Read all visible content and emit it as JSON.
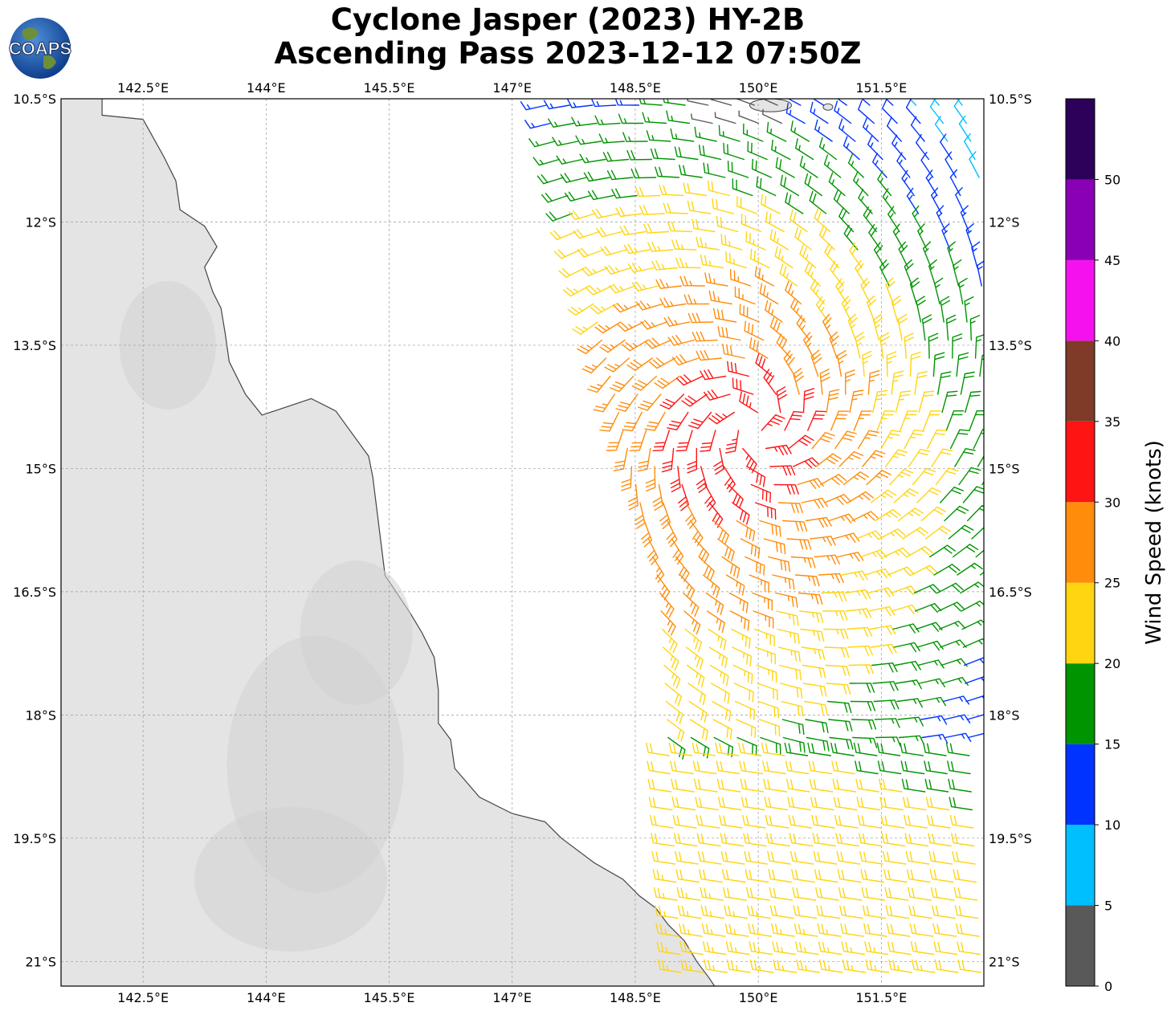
{
  "title": {
    "line1": "Cyclone Jasper (2023) HY-2B",
    "line2": "Ascending Pass 2023-12-12 07:50Z"
  },
  "logo": {
    "text": "COAPS",
    "icon": "globe-logo-icon"
  },
  "map": {
    "lon_range": [
      141.5,
      152.75
    ],
    "lat_range": [
      -21.3,
      -10.5
    ],
    "lon_ticks": [
      {
        "value": 142.5,
        "label": "142.5°E"
      },
      {
        "value": 144.0,
        "label": "144°E"
      },
      {
        "value": 145.5,
        "label": "145.5°E"
      },
      {
        "value": 147.0,
        "label": "147°E"
      },
      {
        "value": 148.5,
        "label": "148.5°E"
      },
      {
        "value": 150.0,
        "label": "150°E"
      },
      {
        "value": 151.5,
        "label": "151.5°E"
      }
    ],
    "lat_ticks": [
      {
        "value": -10.5,
        "label": "10.5°S"
      },
      {
        "value": -12.0,
        "label": "12°S"
      },
      {
        "value": -13.5,
        "label": "13.5°S"
      },
      {
        "value": -15.0,
        "label": "15°S"
      },
      {
        "value": -16.5,
        "label": "16.5°S"
      },
      {
        "value": -18.0,
        "label": "18°S"
      },
      {
        "value": -19.5,
        "label": "19.5°S"
      },
      {
        "value": -21.0,
        "label": "21°S"
      }
    ],
    "grid": true,
    "coastline_color": "#444444",
    "land_color": "#e4e4e4"
  },
  "colorbar": {
    "title": "Wind Speed (knots)",
    "ticks": [
      "0",
      "5",
      "10",
      "15",
      "20",
      "25",
      "30",
      "35",
      "40",
      "45",
      "50"
    ],
    "bins": [
      {
        "from": 0,
        "to": 5,
        "color": "#595959"
      },
      {
        "from": 5,
        "to": 10,
        "color": "#00bfff"
      },
      {
        "from": 10,
        "to": 15,
        "color": "#0033ff"
      },
      {
        "from": 15,
        "to": 20,
        "color": "#009400"
      },
      {
        "from": 20,
        "to": 25,
        "color": "#ffd511"
      },
      {
        "from": 25,
        "to": 30,
        "color": "#ff8c0a"
      },
      {
        "from": 30,
        "to": 35,
        "color": "#ff1414"
      },
      {
        "from": 35,
        "to": 40,
        "color": "#7f3b27"
      },
      {
        "from": 40,
        "to": 45,
        "color": "#f511ee"
      },
      {
        "from": 45,
        "to": 50,
        "color": "#8a00b5"
      },
      {
        "from": 50,
        "to": 55,
        "color": "#2d0059"
      }
    ]
  },
  "wind_field": {
    "description_source": "HY-2B scatterometer swath",
    "center_lon": 149.95,
    "center_lat": -14.5,
    "swath_lon_start": 147.4,
    "swath_lon_end": 152.75,
    "swath_lat_range": [
      -21.3,
      -10.5
    ],
    "regions": [
      {
        "name": "core",
        "speed_range": [
          30,
          35
        ],
        "color": "#ff1414"
      },
      {
        "name": "inner",
        "speed_range": [
          25,
          30
        ],
        "color": "#ff8c0a"
      },
      {
        "name": "band",
        "speed_range": [
          20,
          25
        ],
        "color": "#ffd511"
      },
      {
        "name": "outer",
        "speed_range": [
          15,
          20
        ],
        "color": "#009400"
      },
      {
        "name": "periphery",
        "speed_range": [
          10,
          15
        ],
        "color": "#0033ff"
      },
      {
        "name": "weak",
        "speed_range": [
          5,
          10
        ],
        "color": "#00bfff"
      },
      {
        "name": "calm",
        "speed_range": [
          0,
          5
        ],
        "color": "#595959"
      }
    ]
  }
}
